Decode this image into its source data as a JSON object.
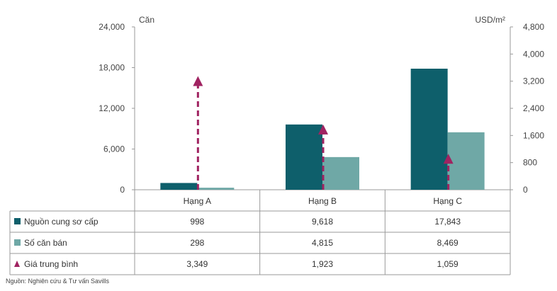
{
  "chart_data": {
    "type": "bar",
    "categories": [
      "Hạng A",
      "Hạng B",
      "Hạng C"
    ],
    "series": [
      {
        "name": "Nguồn cung sơ cấp",
        "type": "bar",
        "axis": "left",
        "color": "#0e5f6b",
        "values": [
          998,
          9618,
          17843
        ],
        "labels": [
          "998",
          "9,618",
          "17,843"
        ]
      },
      {
        "name": "Số căn bán",
        "type": "bar",
        "axis": "left",
        "color": "#6fa8a6",
        "values": [
          298,
          4815,
          8469
        ],
        "labels": [
          "298",
          "4,815",
          "8,469"
        ]
      },
      {
        "name": "Giá trung bình",
        "type": "arrow",
        "axis": "right",
        "color": "#a02361",
        "values": [
          3349,
          1923,
          1059
        ],
        "labels": [
          "3,349",
          "1,923",
          "1,059"
        ]
      }
    ],
    "left_axis": {
      "label": "Căn",
      "min": 0,
      "max": 24000,
      "ticks": [
        "0",
        "6,000",
        "12,000",
        "18,000",
        "24,000"
      ]
    },
    "right_axis": {
      "label": "USD/m²",
      "min": 0,
      "max": 4800,
      "ticks": [
        "0",
        "800",
        "1,600",
        "2,400",
        "3,200",
        "4,000",
        "4,800"
      ]
    },
    "legend": "data-table",
    "grid": false
  },
  "source_note": "Nguồn:  Nghiên cứu & Tư vấn Savills"
}
